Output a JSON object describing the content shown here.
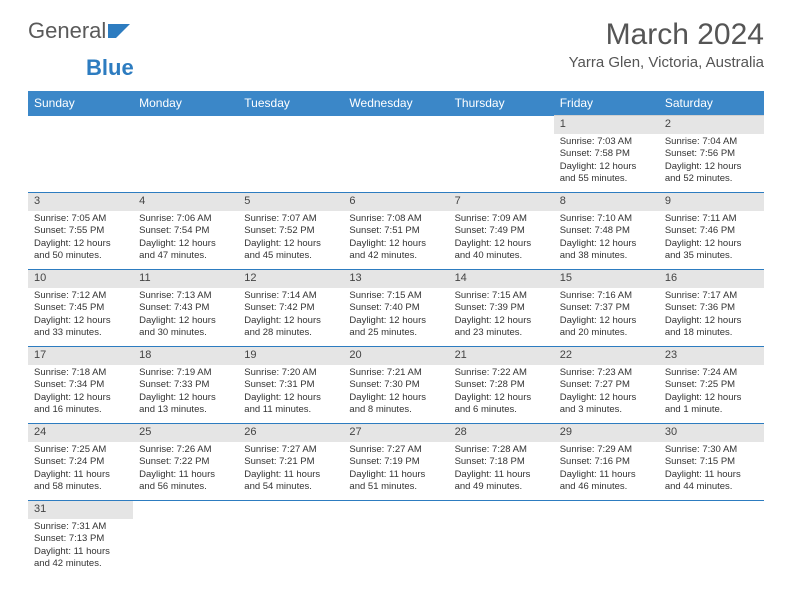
{
  "logo": {
    "text1": "General",
    "text2": "Blue"
  },
  "title": "March 2024",
  "subtitle": "Yarra Glen, Victoria, Australia",
  "colors": {
    "header_bg": "#3b87c8",
    "header_fg": "#ffffff",
    "daynum_bg": "#e5e5e5",
    "row_divider": "#2d7cc0",
    "text": "#333333"
  },
  "dayNames": [
    "Sunday",
    "Monday",
    "Tuesday",
    "Wednesday",
    "Thursday",
    "Friday",
    "Saturday"
  ],
  "weeks": [
    [
      null,
      null,
      null,
      null,
      null,
      {
        "n": "1",
        "sr": "7:03 AM",
        "ss": "7:58 PM",
        "dl": "12 hours and 55 minutes."
      },
      {
        "n": "2",
        "sr": "7:04 AM",
        "ss": "7:56 PM",
        "dl": "12 hours and 52 minutes."
      }
    ],
    [
      {
        "n": "3",
        "sr": "7:05 AM",
        "ss": "7:55 PM",
        "dl": "12 hours and 50 minutes."
      },
      {
        "n": "4",
        "sr": "7:06 AM",
        "ss": "7:54 PM",
        "dl": "12 hours and 47 minutes."
      },
      {
        "n": "5",
        "sr": "7:07 AM",
        "ss": "7:52 PM",
        "dl": "12 hours and 45 minutes."
      },
      {
        "n": "6",
        "sr": "7:08 AM",
        "ss": "7:51 PM",
        "dl": "12 hours and 42 minutes."
      },
      {
        "n": "7",
        "sr": "7:09 AM",
        "ss": "7:49 PM",
        "dl": "12 hours and 40 minutes."
      },
      {
        "n": "8",
        "sr": "7:10 AM",
        "ss": "7:48 PM",
        "dl": "12 hours and 38 minutes."
      },
      {
        "n": "9",
        "sr": "7:11 AM",
        "ss": "7:46 PM",
        "dl": "12 hours and 35 minutes."
      }
    ],
    [
      {
        "n": "10",
        "sr": "7:12 AM",
        "ss": "7:45 PM",
        "dl": "12 hours and 33 minutes."
      },
      {
        "n": "11",
        "sr": "7:13 AM",
        "ss": "7:43 PM",
        "dl": "12 hours and 30 minutes."
      },
      {
        "n": "12",
        "sr": "7:14 AM",
        "ss": "7:42 PM",
        "dl": "12 hours and 28 minutes."
      },
      {
        "n": "13",
        "sr": "7:15 AM",
        "ss": "7:40 PM",
        "dl": "12 hours and 25 minutes."
      },
      {
        "n": "14",
        "sr": "7:15 AM",
        "ss": "7:39 PM",
        "dl": "12 hours and 23 minutes."
      },
      {
        "n": "15",
        "sr": "7:16 AM",
        "ss": "7:37 PM",
        "dl": "12 hours and 20 minutes."
      },
      {
        "n": "16",
        "sr": "7:17 AM",
        "ss": "7:36 PM",
        "dl": "12 hours and 18 minutes."
      }
    ],
    [
      {
        "n": "17",
        "sr": "7:18 AM",
        "ss": "7:34 PM",
        "dl": "12 hours and 16 minutes."
      },
      {
        "n": "18",
        "sr": "7:19 AM",
        "ss": "7:33 PM",
        "dl": "12 hours and 13 minutes."
      },
      {
        "n": "19",
        "sr": "7:20 AM",
        "ss": "7:31 PM",
        "dl": "12 hours and 11 minutes."
      },
      {
        "n": "20",
        "sr": "7:21 AM",
        "ss": "7:30 PM",
        "dl": "12 hours and 8 minutes."
      },
      {
        "n": "21",
        "sr": "7:22 AM",
        "ss": "7:28 PM",
        "dl": "12 hours and 6 minutes."
      },
      {
        "n": "22",
        "sr": "7:23 AM",
        "ss": "7:27 PM",
        "dl": "12 hours and 3 minutes."
      },
      {
        "n": "23",
        "sr": "7:24 AM",
        "ss": "7:25 PM",
        "dl": "12 hours and 1 minute."
      }
    ],
    [
      {
        "n": "24",
        "sr": "7:25 AM",
        "ss": "7:24 PM",
        "dl": "11 hours and 58 minutes."
      },
      {
        "n": "25",
        "sr": "7:26 AM",
        "ss": "7:22 PM",
        "dl": "11 hours and 56 minutes."
      },
      {
        "n": "26",
        "sr": "7:27 AM",
        "ss": "7:21 PM",
        "dl": "11 hours and 54 minutes."
      },
      {
        "n": "27",
        "sr": "7:27 AM",
        "ss": "7:19 PM",
        "dl": "11 hours and 51 minutes."
      },
      {
        "n": "28",
        "sr": "7:28 AM",
        "ss": "7:18 PM",
        "dl": "11 hours and 49 minutes."
      },
      {
        "n": "29",
        "sr": "7:29 AM",
        "ss": "7:16 PM",
        "dl": "11 hours and 46 minutes."
      },
      {
        "n": "30",
        "sr": "7:30 AM",
        "ss": "7:15 PM",
        "dl": "11 hours and 44 minutes."
      }
    ],
    [
      {
        "n": "31",
        "sr": "7:31 AM",
        "ss": "7:13 PM",
        "dl": "11 hours and 42 minutes."
      },
      null,
      null,
      null,
      null,
      null,
      null
    ]
  ],
  "labels": {
    "sunrise": "Sunrise: ",
    "sunset": "Sunset: ",
    "daylight": "Daylight: "
  }
}
